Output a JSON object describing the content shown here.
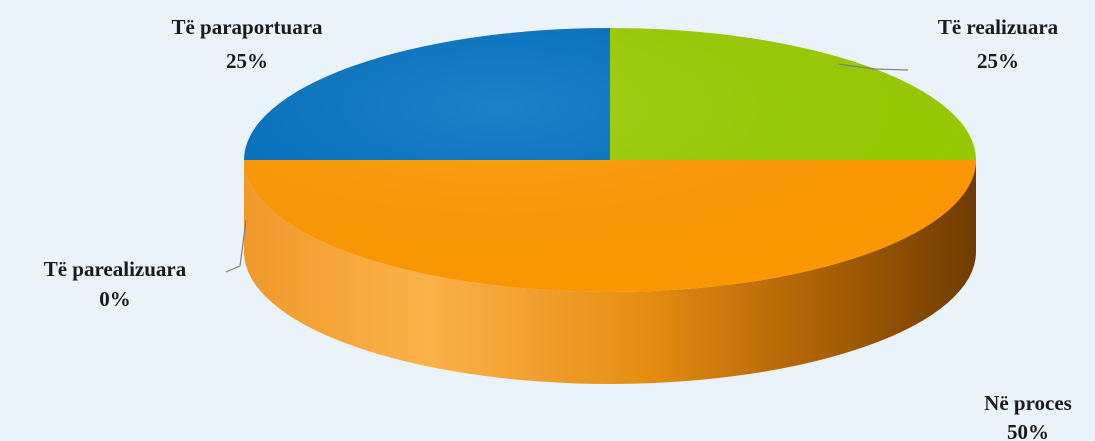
{
  "chart_data": {
    "type": "pie",
    "style": "3d",
    "title": "",
    "slices": [
      {
        "label": "Të realizuara",
        "value": 25,
        "value_label": "25%",
        "color": "#99cc00"
      },
      {
        "label": "Në proces",
        "value": 50,
        "value_label": "50%",
        "color": "#ff9900"
      },
      {
        "label": "Të parealizuara",
        "value": 0,
        "value_label": "0%",
        "color": "#c0504d"
      },
      {
        "label": "Të paraportuara",
        "value": 25,
        "value_label": "25%",
        "color": "#0070c0"
      }
    ]
  }
}
